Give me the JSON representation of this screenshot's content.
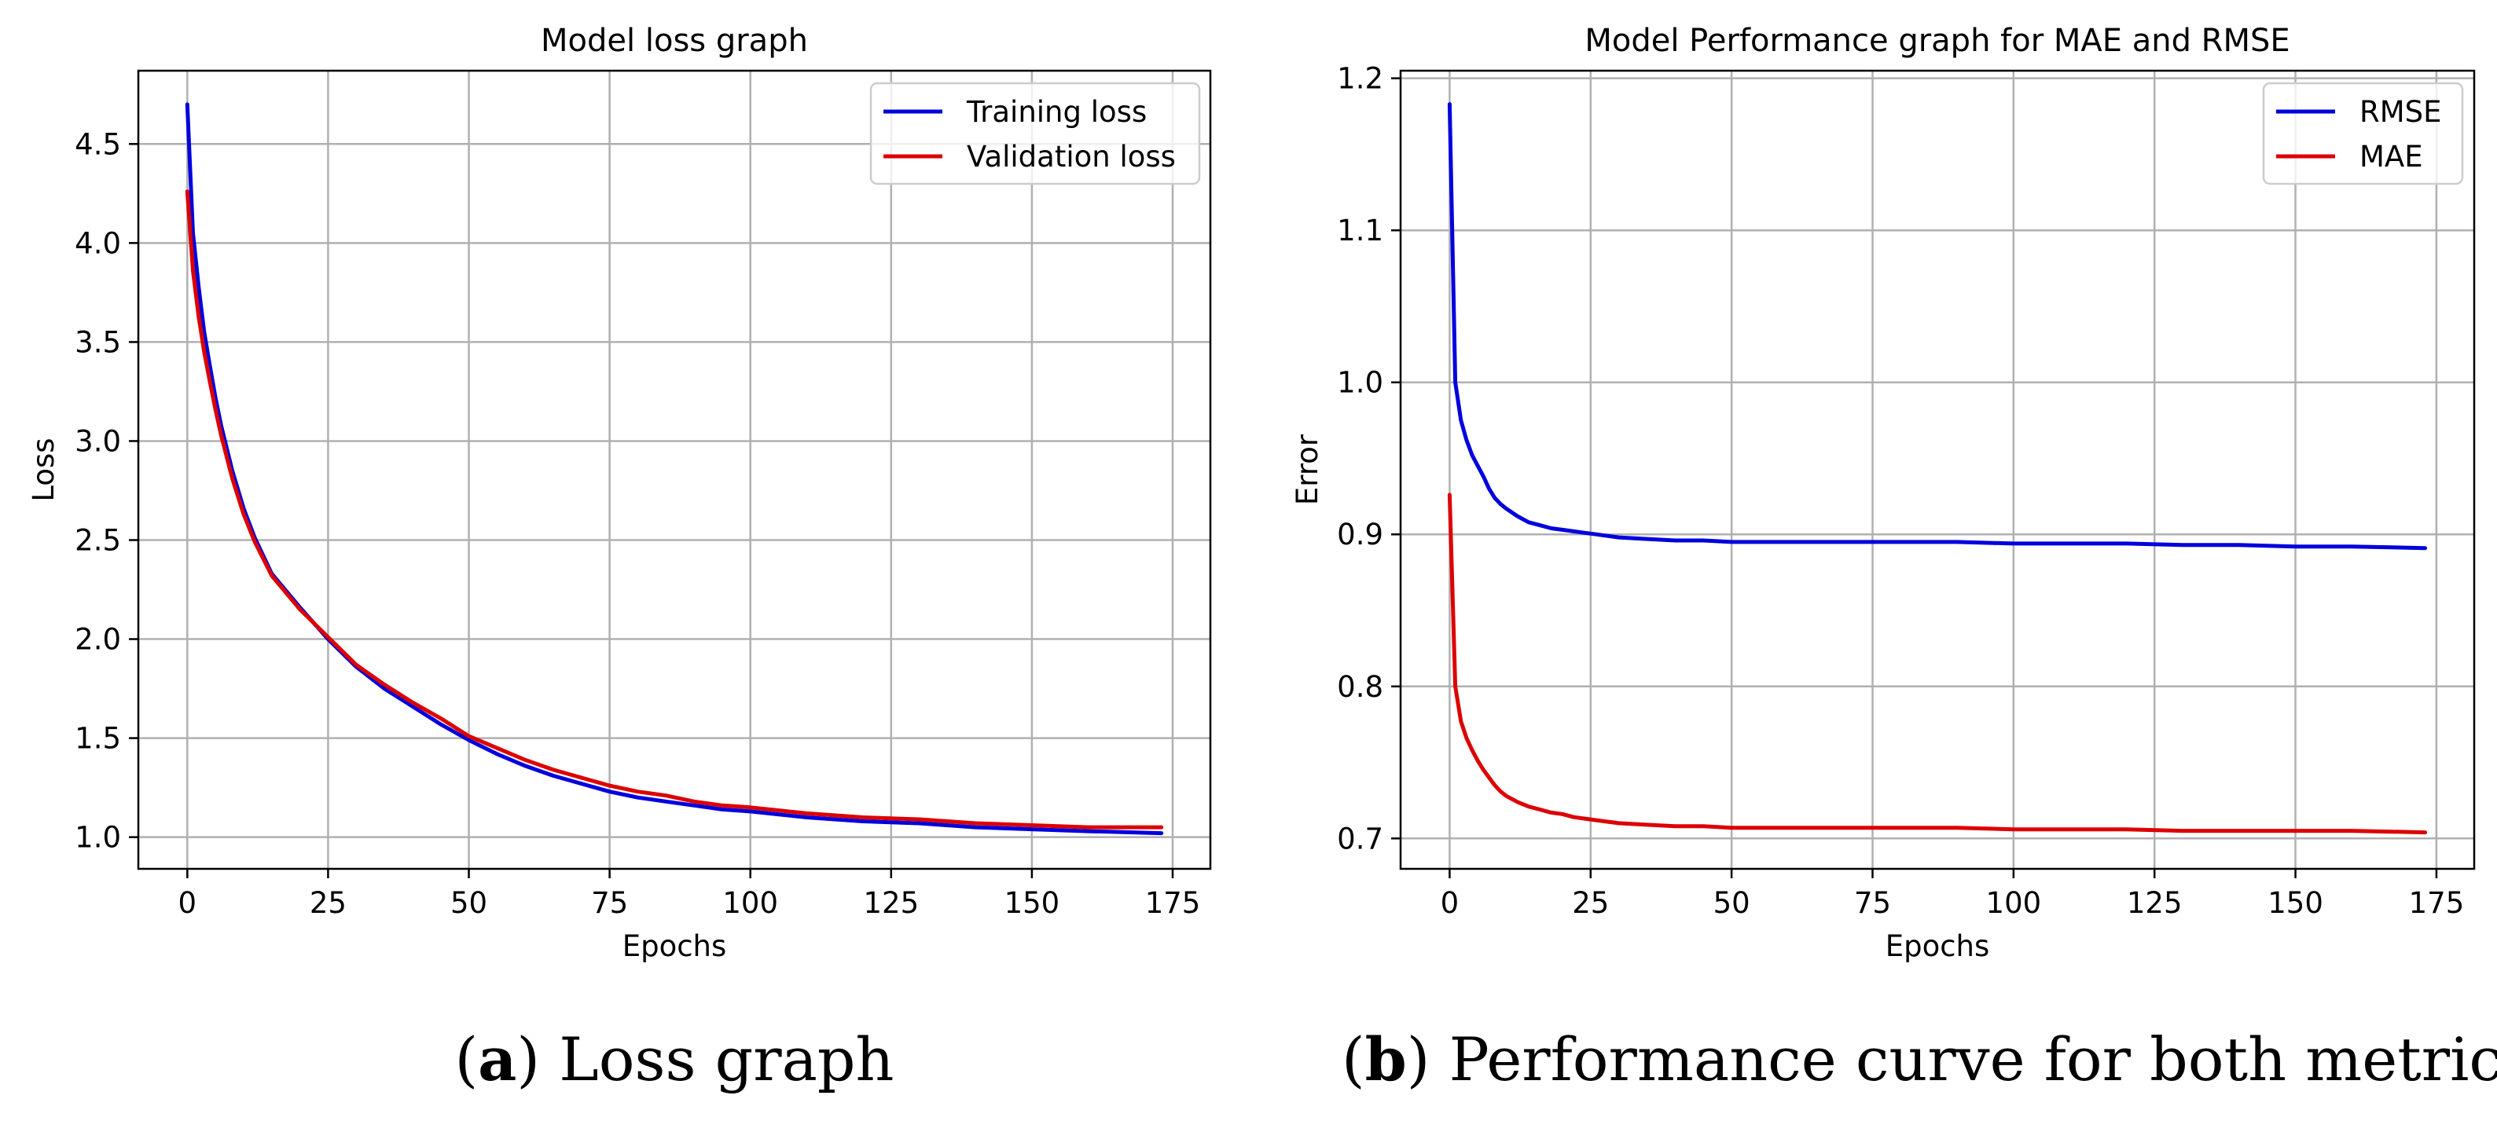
{
  "chart_data": [
    {
      "type": "line",
      "title": "Model loss graph",
      "xlabel": "Epochs",
      "ylabel": "Loss",
      "xlim": [
        -8.7,
        181.7
      ],
      "ylim": [
        0.84,
        4.87
      ],
      "xticks": [
        0,
        25,
        50,
        75,
        100,
        125,
        150,
        175
      ],
      "yticks": [
        1.0,
        1.5,
        2.0,
        2.5,
        3.0,
        3.5,
        4.0,
        4.5
      ],
      "ytick_labels": [
        "1.0",
        "1.5",
        "2.0",
        "2.5",
        "3.0",
        "3.5",
        "4.0",
        "4.5"
      ],
      "grid": true,
      "legend_position": "top-right",
      "x": [
        0,
        1,
        2,
        3,
        4,
        5,
        6,
        8,
        10,
        12,
        15,
        20,
        25,
        30,
        35,
        40,
        45,
        50,
        55,
        60,
        65,
        70,
        75,
        80,
        85,
        90,
        95,
        100,
        110,
        120,
        130,
        140,
        150,
        160,
        173
      ],
      "series": [
        {
          "name": "Training loss",
          "color": "#0000dd",
          "values": [
            4.7,
            4.05,
            3.78,
            3.55,
            3.38,
            3.22,
            3.08,
            2.85,
            2.66,
            2.51,
            2.33,
            2.16,
            2.0,
            1.86,
            1.75,
            1.66,
            1.57,
            1.49,
            1.42,
            1.36,
            1.31,
            1.27,
            1.23,
            1.2,
            1.18,
            1.16,
            1.14,
            1.13,
            1.1,
            1.08,
            1.07,
            1.05,
            1.04,
            1.03,
            1.02
          ]
        },
        {
          "name": "Validation loss",
          "color": "#dd0000",
          "values": [
            4.26,
            3.86,
            3.63,
            3.45,
            3.3,
            3.16,
            3.03,
            2.81,
            2.63,
            2.49,
            2.32,
            2.15,
            2.01,
            1.87,
            1.77,
            1.68,
            1.6,
            1.51,
            1.45,
            1.39,
            1.34,
            1.3,
            1.26,
            1.23,
            1.21,
            1.18,
            1.16,
            1.15,
            1.12,
            1.1,
            1.09,
            1.07,
            1.06,
            1.05,
            1.05
          ]
        }
      ]
    },
    {
      "type": "line",
      "title": "Model Performance graph for MAE and RMSE",
      "xlabel": "Epochs",
      "ylabel": "Error",
      "xlim": [
        -8.7,
        181.7
      ],
      "ylim": [
        0.68,
        1.205
      ],
      "xticks": [
        0,
        25,
        50,
        75,
        100,
        125,
        150,
        175
      ],
      "yticks": [
        0.7,
        0.8,
        0.9,
        1.0,
        1.1,
        1.2
      ],
      "ytick_labels": [
        "0.7",
        "0.8",
        "0.9",
        "1.0",
        "1.1",
        "1.2"
      ],
      "grid": true,
      "legend_position": "top-right",
      "x": [
        0,
        1,
        2,
        3,
        4,
        5,
        6,
        7,
        8,
        9,
        10,
        12,
        14,
        16,
        18,
        20,
        22,
        24,
        26,
        28,
        30,
        35,
        40,
        45,
        50,
        60,
        70,
        80,
        90,
        100,
        110,
        120,
        130,
        140,
        150,
        160,
        173
      ],
      "series": [
        {
          "name": "RMSE",
          "color": "#0000dd",
          "values": [
            1.183,
            1.0,
            0.975,
            0.962,
            0.952,
            0.945,
            0.938,
            0.93,
            0.924,
            0.92,
            0.917,
            0.912,
            0.908,
            0.906,
            0.904,
            0.903,
            0.902,
            0.901,
            0.9,
            0.899,
            0.898,
            0.897,
            0.896,
            0.896,
            0.895,
            0.895,
            0.895,
            0.895,
            0.895,
            0.894,
            0.894,
            0.894,
            0.893,
            0.893,
            0.892,
            0.892,
            0.891
          ]
        },
        {
          "name": "MAE",
          "color": "#dd0000",
          "values": [
            0.926,
            0.8,
            0.777,
            0.766,
            0.758,
            0.751,
            0.745,
            0.74,
            0.735,
            0.731,
            0.728,
            0.724,
            0.721,
            0.719,
            0.717,
            0.716,
            0.714,
            0.713,
            0.712,
            0.711,
            0.71,
            0.709,
            0.708,
            0.708,
            0.707,
            0.707,
            0.707,
            0.707,
            0.707,
            0.706,
            0.706,
            0.706,
            0.705,
            0.705,
            0.705,
            0.705,
            0.704
          ]
        }
      ]
    }
  ],
  "captions": [
    {
      "label": "a",
      "text": "Loss graph"
    },
    {
      "label": "b",
      "text": "Performance curve for both metrics"
    }
  ]
}
